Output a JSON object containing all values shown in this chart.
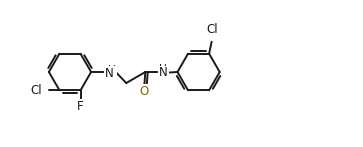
{
  "bg_color": "#ffffff",
  "bond_color": "#1a1a1a",
  "O_color": "#8b6400",
  "N_color": "#1a1a1a",
  "line_width": 1.4,
  "font_size": 8.5,
  "figsize": [
    3.63,
    1.47
  ],
  "dpi": 100,
  "ring_r": 0.42,
  "xlim": [
    0.0,
    7.2
  ],
  "ylim": [
    -0.9,
    1.4
  ]
}
